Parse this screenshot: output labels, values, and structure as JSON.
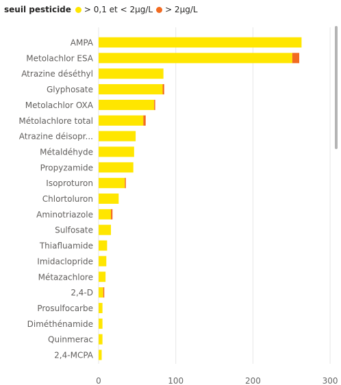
{
  "legend": {
    "title": "seuil pesticide",
    "items": [
      {
        "label": "> 0,1 et < 2µg/L",
        "color": "#FFE600"
      },
      {
        "label": "> 2µg/L",
        "color": "#F26B21"
      }
    ]
  },
  "chart_data": {
    "type": "bar",
    "orientation": "horizontal",
    "stacked": true,
    "categories": [
      "AMPA",
      "Metolachlor ESA",
      "Atrazine déséthyl",
      "Glyphosate",
      "Metolachlor OXA",
      "Métolachlore total",
      "Atrazine déisopr...",
      "Métaldéhyde",
      "Propyzamide",
      "Isoproturon",
      "Chlortoluron",
      "Aminotriazole",
      "Sulfosate",
      "Thiafluamide",
      "Imidaclopride",
      "Métazachlore",
      "2,4-D",
      "Prosulfocarbe",
      "Diméthénamide",
      "Quinmerac",
      "2,4-MCPA"
    ],
    "series": [
      {
        "name": "> 0,1 et < 2µg/L",
        "color": "#FFE600",
        "values": [
          263,
          251,
          84,
          83,
          72,
          58,
          48,
          46,
          45,
          34,
          26,
          16,
          16,
          11,
          10,
          9,
          6,
          5,
          5,
          5,
          4
        ]
      },
      {
        "name": "> 2µg/L",
        "color": "#F26B21",
        "values": [
          0,
          9,
          0,
          2,
          1,
          3,
          0,
          0,
          0,
          1,
          0,
          2,
          0,
          0,
          0,
          0,
          1,
          0,
          0,
          0,
          0
        ]
      }
    ],
    "xticks": [
      0,
      100,
      200,
      300
    ],
    "xlim": [
      0,
      300
    ],
    "grid": true,
    "legend_position": "top-left"
  },
  "colors": {
    "grid": "#e6e6e6",
    "axis_text": "#666666",
    "category_text": "#605e5c",
    "scrollbar": "#b4b4b4"
  }
}
